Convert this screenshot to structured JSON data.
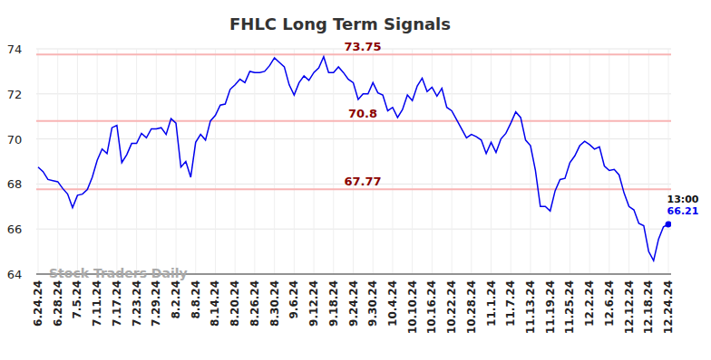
{
  "chart_data": {
    "type": "line",
    "title": "FHLC Long Term Signals",
    "categories": [
      "6.24.24",
      null,
      null,
      null,
      "6.28.24",
      null,
      null,
      null,
      "7.5.24",
      null,
      null,
      null,
      "7.11.24",
      null,
      null,
      null,
      "7.17.24",
      null,
      null,
      null,
      "7.23.24",
      null,
      null,
      null,
      "7.29.24",
      null,
      null,
      null,
      "8.2.24",
      null,
      null,
      null,
      "8.8.24",
      null,
      null,
      null,
      "8.14.24",
      null,
      null,
      null,
      "8.20.24",
      null,
      null,
      null,
      "8.26.24",
      null,
      null,
      null,
      "8.30.24",
      null,
      null,
      null,
      "9.6.24",
      null,
      null,
      null,
      "9.12.24",
      null,
      null,
      null,
      "9.18.24",
      null,
      null,
      null,
      "9.24.24",
      null,
      null,
      null,
      "9.30.24",
      null,
      null,
      null,
      "10.4.24",
      null,
      null,
      null,
      "10.10.24",
      null,
      null,
      null,
      "10.16.24",
      null,
      null,
      null,
      "10.22.24",
      null,
      null,
      null,
      "10.28.24",
      null,
      null,
      null,
      "11.1.24",
      null,
      null,
      null,
      "11.7.24",
      null,
      null,
      null,
      "11.13.24",
      null,
      null,
      null,
      "11.19.24",
      null,
      null,
      null,
      "11.25.24",
      null,
      null,
      null,
      "12.2.24",
      null,
      null,
      null,
      "12.6.24",
      null,
      null,
      null,
      "12.12.24",
      null,
      null,
      null,
      "12.18.24",
      null,
      null,
      null,
      "12.24.24"
    ],
    "values": [
      68.75,
      68.55,
      68.2,
      68.15,
      68.1,
      67.8,
      67.55,
      66.95,
      67.5,
      67.55,
      67.75,
      68.3,
      69.05,
      69.55,
      69.35,
      70.5,
      70.6,
      68.95,
      69.3,
      69.8,
      69.8,
      70.25,
      70.05,
      70.45,
      70.45,
      70.5,
      70.2,
      70.9,
      70.7,
      68.75,
      69.0,
      68.3,
      69.85,
      70.2,
      69.95,
      70.8,
      71.05,
      71.5,
      71.55,
      72.2,
      72.4,
      72.65,
      72.5,
      73.0,
      72.95,
      72.95,
      73.0,
      73.25,
      73.6,
      73.4,
      73.2,
      72.4,
      71.95,
      72.5,
      72.8,
      72.6,
      72.95,
      73.15,
      73.65,
      72.95,
      72.95,
      73.2,
      72.95,
      72.65,
      72.5,
      71.75,
      72.0,
      72.0,
      72.5,
      72.05,
      71.95,
      71.25,
      71.4,
      70.95,
      71.3,
      71.95,
      71.7,
      72.35,
      72.7,
      72.1,
      72.3,
      71.9,
      72.25,
      71.4,
      71.25,
      70.85,
      70.45,
      70.05,
      70.2,
      70.1,
      69.95,
      69.35,
      69.85,
      69.4,
      70.0,
      70.25,
      70.7,
      71.2,
      70.95,
      69.95,
      69.7,
      68.6,
      67.0,
      67.0,
      66.8,
      67.7,
      68.2,
      68.25,
      68.95,
      69.25,
      69.7,
      69.9,
      69.75,
      69.55,
      69.65,
      68.8,
      68.6,
      68.65,
      68.4,
      67.6,
      67.0,
      66.85,
      66.25,
      66.15,
      65.0,
      64.6,
      65.55,
      66.1,
      66.21
    ],
    "color": "#0000ee",
    "ylim": [
      64,
      74
    ],
    "yticks": [
      64,
      66,
      68,
      70,
      72,
      74
    ],
    "grid": true,
    "reference_lines": [
      {
        "value": 73.75,
        "label": "73.75"
      },
      {
        "value": 70.8,
        "label": "70.8"
      },
      {
        "value": 67.77,
        "label": "67.77"
      }
    ],
    "last_point_label": {
      "time": "13:00",
      "value": 66.21
    },
    "watermark": "Stock Traders Daily"
  }
}
